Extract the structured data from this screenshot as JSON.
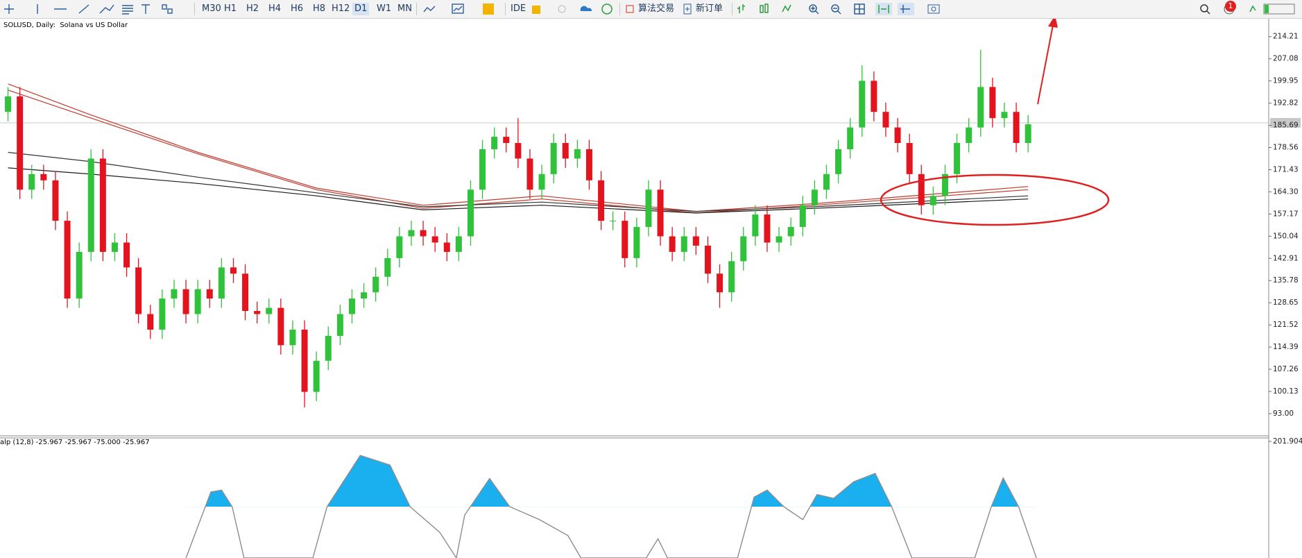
{
  "toolbar": {
    "timeframes": [
      "M30",
      "H1",
      "H2",
      "H4",
      "H6",
      "H8",
      "H12",
      "D1",
      "W1",
      "MN"
    ],
    "ide": "IDE",
    "algo_trading": "算法交易",
    "new_order": "新订单",
    "alert_badge": "1"
  },
  "chart_data": [
    {
      "type": "candlestick",
      "title": "SOLUSD, Daily:  Solana vs US Dollar",
      "open": [
        190,
        195,
        165,
        170,
        168,
        155,
        130,
        145,
        175,
        145,
        148,
        140,
        125,
        120,
        130,
        133,
        125,
        133,
        130,
        140,
        138,
        126,
        125,
        127,
        115,
        120,
        100,
        110,
        118,
        125,
        130,
        132,
        137,
        143,
        150,
        152,
        150,
        148,
        145,
        150,
        165,
        178,
        182,
        180,
        175,
        165,
        170,
        180,
        175,
        178,
        168,
        155,
        155,
        143,
        153,
        165,
        150,
        145,
        150,
        147,
        138,
        132,
        142,
        150,
        157,
        148,
        150,
        153,
        160,
        165,
        170,
        178,
        185,
        200,
        190,
        185,
        180,
        170,
        160,
        163,
        170,
        180,
        185,
        198,
        188,
        190,
        180
      ],
      "high": [
        198,
        198,
        173,
        173,
        171,
        158,
        148,
        178,
        178,
        151,
        151,
        143,
        128,
        133,
        136,
        136,
        136,
        136,
        143,
        143,
        141,
        129,
        130,
        130,
        123,
        123,
        113,
        121,
        128,
        133,
        135,
        140,
        146,
        153,
        155,
        155,
        153,
        151,
        153,
        168,
        181,
        185,
        185,
        188,
        178,
        173,
        183,
        183,
        181,
        181,
        171,
        158,
        158,
        156,
        168,
        168,
        153,
        153,
        153,
        150,
        141,
        145,
        153,
        160,
        160,
        153,
        156,
        163,
        168,
        173,
        181,
        188,
        205,
        203,
        193,
        188,
        183,
        173,
        166,
        173,
        183,
        188,
        210,
        201,
        193,
        193,
        189
      ],
      "low": [
        187,
        162,
        162,
        165,
        152,
        127,
        127,
        142,
        142,
        142,
        137,
        122,
        117,
        117,
        127,
        122,
        122,
        127,
        127,
        135,
        123,
        122,
        122,
        112,
        112,
        95,
        97,
        107,
        115,
        122,
        127,
        129,
        134,
        140,
        147,
        147,
        145,
        142,
        142,
        147,
        162,
        175,
        177,
        172,
        162,
        162,
        167,
        172,
        172,
        165,
        152,
        152,
        140,
        140,
        150,
        147,
        142,
        142,
        144,
        135,
        127,
        129,
        139,
        147,
        145,
        145,
        147,
        150,
        157,
        162,
        167,
        175,
        182,
        187,
        182,
        177,
        167,
        157,
        157,
        160,
        167,
        177,
        182,
        185,
        185,
        177,
        177
      ],
      "close": [
        195,
        165,
        170,
        168,
        155,
        130,
        145,
        175,
        145,
        148,
        140,
        125,
        120,
        130,
        133,
        125,
        133,
        130,
        140,
        138,
        126,
        125,
        127,
        115,
        120,
        100,
        110,
        118,
        125,
        130,
        132,
        137,
        143,
        150,
        152,
        150,
        148,
        145,
        150,
        165,
        178,
        182,
        180,
        175,
        165,
        170,
        180,
        175,
        178,
        168,
        155,
        155,
        143,
        153,
        165,
        150,
        145,
        150,
        147,
        138,
        132,
        142,
        150,
        157,
        148,
        150,
        153,
        160,
        165,
        170,
        178,
        185,
        200,
        190,
        185,
        180,
        170,
        160,
        163,
        170,
        180,
        185,
        198,
        188,
        190,
        180,
        186
      ],
      "up_color": "#2fc23a",
      "down_color": "#e3141e",
      "moving_averages": [
        {
          "color": "#c0392b",
          "x": [
            0,
            7,
            16,
            26,
            35,
            45,
            58,
            68,
            86
          ],
          "values": [
            199,
            189,
            177,
            165.5,
            160,
            163,
            158,
            160.5,
            166
          ]
        },
        {
          "color": "#c0392b",
          "x": [
            0,
            7,
            16,
            26,
            35,
            45,
            58,
            68,
            86
          ],
          "values": [
            197,
            188,
            176.5,
            165,
            159,
            162,
            157.5,
            160,
            165
          ]
        },
        {
          "color": "#333333",
          "x": [
            0,
            7,
            16,
            26,
            35,
            45,
            58,
            68,
            86
          ],
          "values": [
            177,
            174,
            169,
            164,
            159.5,
            161,
            158,
            159.5,
            163
          ]
        },
        {
          "color": "#1a1a1a",
          "x": [
            0,
            7,
            16,
            26,
            35,
            45,
            58,
            68,
            86
          ],
          "values": [
            172,
            170,
            167,
            163,
            158.5,
            160,
            157.5,
            159,
            162
          ]
        }
      ],
      "ylim": [
        86.08,
        219.5
      ],
      "yticks": [
        214.21,
        207.08,
        199.95,
        192.82,
        185.69,
        178.56,
        171.43,
        {
          "value": 164.3,
          "label": "164.30"
        },
        157.17,
        150.04,
        142.91,
        135.78,
        128.65,
        121.52,
        114.39,
        107.26,
        100.13,
        {
          "value": 93,
          "label": "93.00"
        }
      ]
    },
    {
      "type": "line",
      "title": "alp (12,8) -25.967 -25.967 -75.000 -25.967",
      "series": [
        {
          "color": "#8c8c8c",
          "x": [
            15,
            17.1,
            18,
            18.9,
            19.9,
            25.7,
            26.9,
            29.7,
            32.2,
            33.9,
            36.4,
            37.8,
            38.5,
            40.6,
            42.3,
            44.8,
            47.2,
            48.3,
            53.8,
            54.8,
            55.6,
            61.5,
            62.9,
            64,
            65.4,
            67,
            68.2,
            69.6,
            71.3,
            73.1,
            74.5,
            76.2,
            81.5,
            82.9,
            83.9,
            85.2,
            86.7
          ],
          "values": [
            20,
            123,
            126,
            100,
            20,
            20,
            100,
            180,
            165,
            100,
            60,
            20,
            87,
            144,
            100,
            80,
            55,
            20,
            20,
            50,
            20,
            20,
            115,
            126,
            100,
            80,
            119,
            113,
            139,
            152,
            100,
            20,
            20,
            100,
            145,
            100,
            20
          ]
        }
      ],
      "level": 100,
      "fill_color": "#1ab0ef",
      "ylim": [
        20,
        201.904
      ],
      "yticks": [
        201.904
      ]
    }
  ]
}
